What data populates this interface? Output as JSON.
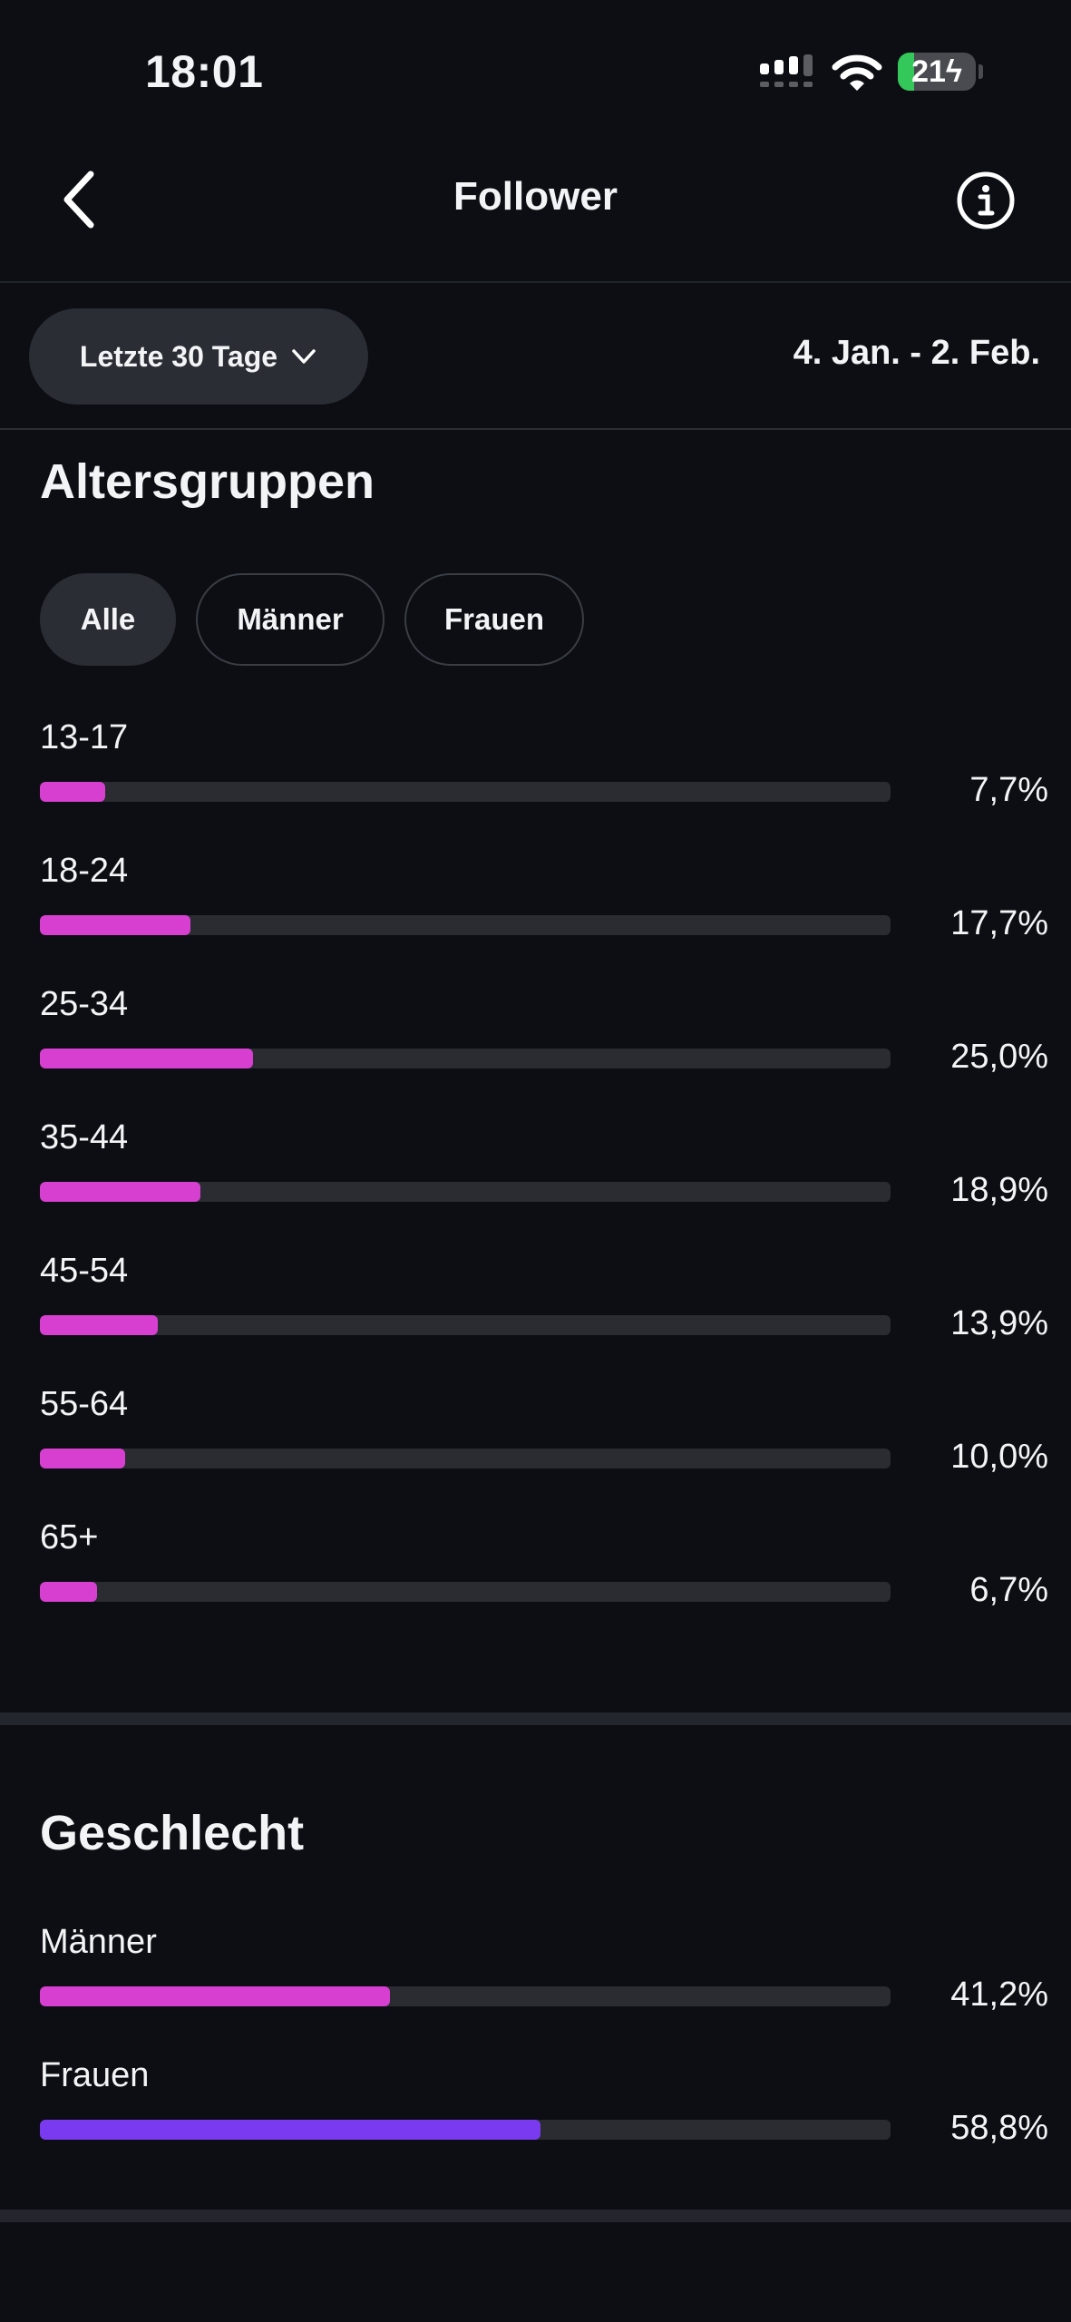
{
  "status_bar": {
    "time": "18:01",
    "battery": "21",
    "battery_level": 0.21
  },
  "header": {
    "title": "Follower",
    "back_icon": "chevron-left-icon",
    "info_icon": "info-icon"
  },
  "period": {
    "label": "Letzte 30 Tage",
    "range": "4. Jan. - 2. Feb."
  },
  "colors": {
    "accent": "#d63fd0",
    "female": "#7a3bf0",
    "track": "#2a2c32",
    "background": "#0c0e13"
  },
  "age_groups": {
    "title": "Altersgruppen",
    "filters": [
      {
        "label": "Alle",
        "active": true
      },
      {
        "label": "Männer",
        "active": false
      },
      {
        "label": "Frauen",
        "active": false
      }
    ],
    "items": [
      {
        "label": "13-17",
        "value": "7,7%",
        "percent": 7.7
      },
      {
        "label": "18-24",
        "value": "17,7%",
        "percent": 17.7
      },
      {
        "label": "25-34",
        "value": "25,0%",
        "percent": 25.0
      },
      {
        "label": "35-44",
        "value": "18,9%",
        "percent": 18.9
      },
      {
        "label": "45-54",
        "value": "13,9%",
        "percent": 13.9
      },
      {
        "label": "55-64",
        "value": "10,0%",
        "percent": 10.0
      },
      {
        "label": "65+",
        "value": "6,7%",
        "percent": 6.7
      }
    ]
  },
  "gender": {
    "title": "Geschlecht",
    "items": [
      {
        "label": "Männer",
        "value": "41,2%",
        "percent": 41.2
      },
      {
        "label": "Frauen",
        "value": "58,8%",
        "percent": 58.8
      }
    ]
  }
}
